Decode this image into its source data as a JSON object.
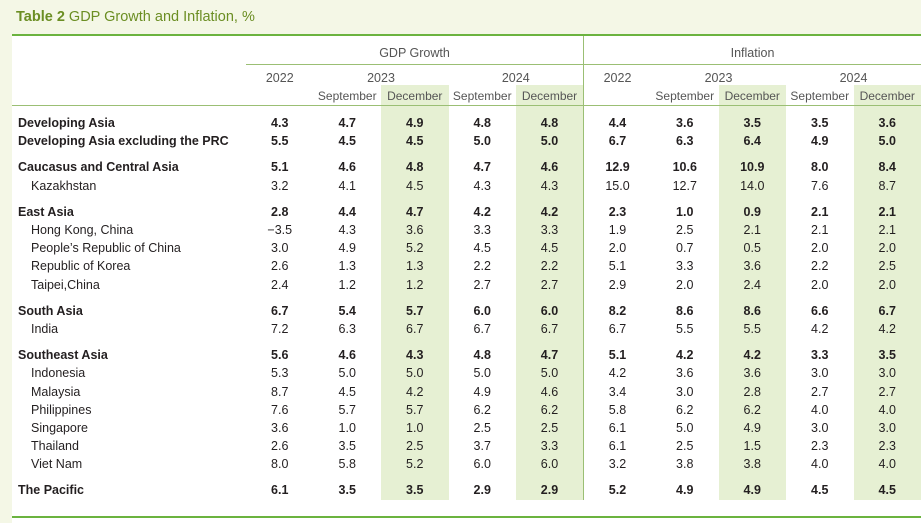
{
  "title": {
    "prefix": "Table 2",
    "rest": "GDP Growth and Inflation, %"
  },
  "groups": {
    "gdp": "GDP Growth",
    "inflation": "Inflation"
  },
  "years": {
    "y2022": "2022",
    "y2023": "2023",
    "y2024": "2024"
  },
  "months": {
    "sep": "September",
    "dec": "December"
  },
  "sections": [
    {
      "rows": [
        {
          "name": "Developing Asia",
          "bold": true,
          "values": [
            "4.3",
            "4.7",
            "4.9",
            "4.8",
            "4.8",
            "4.4",
            "3.6",
            "3.5",
            "3.5",
            "3.6"
          ]
        },
        {
          "name": "Developing Asia excluding the PRC",
          "bold": true,
          "values": [
            "5.5",
            "4.5",
            "4.5",
            "5.0",
            "5.0",
            "6.7",
            "6.3",
            "6.4",
            "4.9",
            "5.0"
          ]
        }
      ]
    },
    {
      "rows": [
        {
          "name": "Caucasus and Central Asia",
          "bold": true,
          "values": [
            "5.1",
            "4.6",
            "4.8",
            "4.7",
            "4.6",
            "12.9",
            "10.6",
            "10.9",
            "8.0",
            "8.4"
          ]
        },
        {
          "name": "Kazakhstan",
          "bold": false,
          "values": [
            "3.2",
            "4.1",
            "4.5",
            "4.3",
            "4.3",
            "15.0",
            "12.7",
            "14.0",
            "7.6",
            "8.7"
          ]
        }
      ]
    },
    {
      "rows": [
        {
          "name": "East Asia",
          "bold": true,
          "values": [
            "2.8",
            "4.4",
            "4.7",
            "4.2",
            "4.2",
            "2.3",
            "1.0",
            "0.9",
            "2.1",
            "2.1"
          ]
        },
        {
          "name": "Hong Kong, China",
          "bold": false,
          "values": [
            "−3.5",
            "4.3",
            "3.6",
            "3.3",
            "3.3",
            "1.9",
            "2.5",
            "2.1",
            "2.1",
            "2.1"
          ]
        },
        {
          "name": "People’s Republic of China",
          "bold": false,
          "values": [
            "3.0",
            "4.9",
            "5.2",
            "4.5",
            "4.5",
            "2.0",
            "0.7",
            "0.5",
            "2.0",
            "2.0"
          ]
        },
        {
          "name": "Republic of Korea",
          "bold": false,
          "values": [
            "2.6",
            "1.3",
            "1.3",
            "2.2",
            "2.2",
            "5.1",
            "3.3",
            "3.6",
            "2.2",
            "2.5"
          ]
        },
        {
          "name": "Taipei,China",
          "bold": false,
          "values": [
            "2.4",
            "1.2",
            "1.2",
            "2.7",
            "2.7",
            "2.9",
            "2.0",
            "2.4",
            "2.0",
            "2.0"
          ]
        }
      ]
    },
    {
      "rows": [
        {
          "name": "South Asia",
          "bold": true,
          "values": [
            "6.7",
            "5.4",
            "5.7",
            "6.0",
            "6.0",
            "8.2",
            "8.6",
            "8.6",
            "6.6",
            "6.7"
          ]
        },
        {
          "name": "India",
          "bold": false,
          "values": [
            "7.2",
            "6.3",
            "6.7",
            "6.7",
            "6.7",
            "6.7",
            "5.5",
            "5.5",
            "4.2",
            "4.2"
          ]
        }
      ]
    },
    {
      "rows": [
        {
          "name": "Southeast Asia",
          "bold": true,
          "values": [
            "5.6",
            "4.6",
            "4.3",
            "4.8",
            "4.7",
            "5.1",
            "4.2",
            "4.2",
            "3.3",
            "3.5"
          ]
        },
        {
          "name": "Indonesia",
          "bold": false,
          "values": [
            "5.3",
            "5.0",
            "5.0",
            "5.0",
            "5.0",
            "4.2",
            "3.6",
            "3.6",
            "3.0",
            "3.0"
          ]
        },
        {
          "name": "Malaysia",
          "bold": false,
          "values": [
            "8.7",
            "4.5",
            "4.2",
            "4.9",
            "4.6",
            "3.4",
            "3.0",
            "2.8",
            "2.7",
            "2.7"
          ]
        },
        {
          "name": "Philippines",
          "bold": false,
          "values": [
            "7.6",
            "5.7",
            "5.7",
            "6.2",
            "6.2",
            "5.8",
            "6.2",
            "6.2",
            "4.0",
            "4.0"
          ]
        },
        {
          "name": "Singapore",
          "bold": false,
          "values": [
            "3.6",
            "1.0",
            "1.0",
            "2.5",
            "2.5",
            "6.1",
            "5.0",
            "4.9",
            "3.0",
            "3.0"
          ]
        },
        {
          "name": "Thailand",
          "bold": false,
          "values": [
            "2.6",
            "3.5",
            "2.5",
            "3.7",
            "3.3",
            "6.1",
            "2.5",
            "1.5",
            "2.3",
            "2.3"
          ]
        },
        {
          "name": "Viet Nam",
          "bold": false,
          "values": [
            "8.0",
            "5.8",
            "5.2",
            "6.0",
            "6.0",
            "3.2",
            "3.8",
            "3.8",
            "4.0",
            "4.0"
          ]
        }
      ]
    },
    {
      "rows": [
        {
          "name": "The Pacific",
          "bold": true,
          "values": [
            "6.1",
            "3.5",
            "3.5",
            "2.9",
            "2.9",
            "5.2",
            "4.9",
            "4.9",
            "4.5",
            "4.5"
          ]
        }
      ]
    }
  ]
}
